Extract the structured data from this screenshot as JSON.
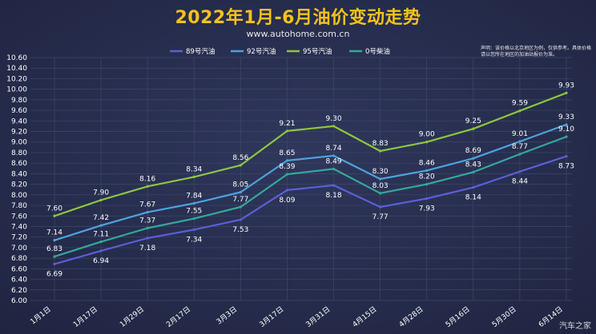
{
  "header": {
    "title": "2022年1月-6月油价变动走势",
    "subtitle": "www.autohome.com.cn",
    "disclaimer": "声明：该价格以北京地区为例，仅供参考。具体价格请以您所在地区的加油站报价为准。"
  },
  "watermark": "汽车之家",
  "colors": {
    "background": "#262c4a",
    "title": "#f6c21a",
    "grid": "#3f4868",
    "text": "#ffffff"
  },
  "chart_data": {
    "type": "line",
    "title": "2022年1月-6月油价变动走势",
    "categories": [
      "1月1日",
      "1月17日",
      "1月29日",
      "2月17日",
      "3月3日",
      "3月17日",
      "3月31日",
      "4月15日",
      "4月28日",
      "5月16日",
      "5月30日",
      "6月14日"
    ],
    "ylim": [
      6.0,
      10.6
    ],
    "yticks": [
      "6.00",
      "6.20",
      "6.40",
      "6.60",
      "6.80",
      "7.00",
      "7.20",
      "7.40",
      "7.60",
      "7.80",
      "8.00",
      "8.20",
      "8.40",
      "8.60",
      "8.80",
      "9.00",
      "9.20",
      "9.40",
      "9.60",
      "9.80",
      "10.00",
      "10.20",
      "10.40",
      "10.60"
    ],
    "grid": true,
    "legend_position": "top",
    "series": [
      {
        "name": "89号汽油",
        "color": "#5b5fd6",
        "values": [
          6.69,
          6.94,
          7.18,
          7.34,
          7.53,
          8.09,
          8.18,
          7.77,
          7.93,
          8.14,
          8.44,
          8.73
        ]
      },
      {
        "name": "92号汽油",
        "color": "#4ca3dd",
        "values": [
          7.14,
          7.42,
          7.67,
          7.84,
          8.05,
          8.65,
          8.74,
          8.3,
          8.46,
          8.69,
          9.01,
          9.33
        ]
      },
      {
        "name": "95号汽油",
        "color": "#8dc63f",
        "values": [
          7.6,
          7.9,
          8.16,
          8.34,
          8.56,
          9.21,
          9.3,
          8.83,
          9.0,
          9.25,
          9.59,
          9.93
        ]
      },
      {
        "name": "0号柴油",
        "color": "#35a89a",
        "values": [
          6.83,
          7.11,
          7.37,
          7.55,
          7.77,
          8.39,
          8.49,
          8.03,
          8.2,
          8.43,
          8.77,
          9.1
        ]
      }
    ],
    "data_labels": [
      [
        "6.69",
        "6.94",
        "7.18",
        "7.34",
        "7.53",
        "8.09",
        "8.18",
        "7.77",
        "7.93",
        "8.14",
        "8.44",
        "8.73"
      ],
      [
        "7.14",
        "7.42",
        "7.67",
        "7.84",
        "8.05",
        "8.65",
        "8.74",
        "8.30",
        "8.46",
        "8.69",
        "9.01",
        "9.33"
      ],
      [
        "7.60",
        "7.90",
        "8.16",
        "8.34",
        "8.56",
        "9.21",
        "9.30",
        "8.83",
        "9.00",
        "9.25",
        "9.59",
        "9.93"
      ],
      [
        "6.83",
        "7.11",
        "7.37",
        "7.55",
        "7.77",
        "8.39",
        "8.49",
        "8.03",
        "8.20",
        "8.43",
        "8.77",
        "9.10"
      ]
    ]
  }
}
